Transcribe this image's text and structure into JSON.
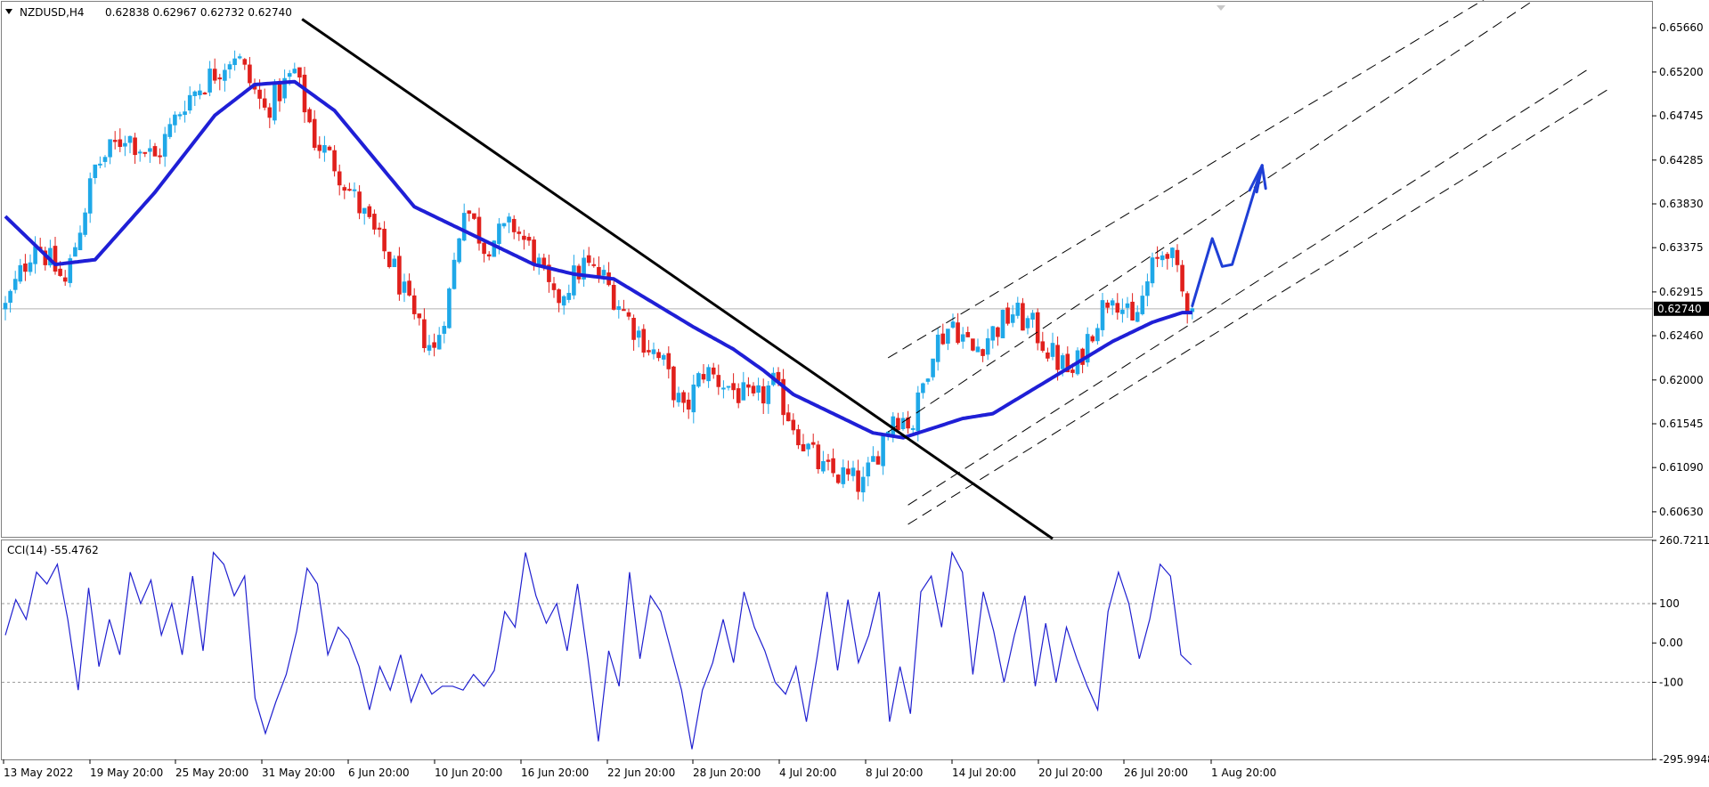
{
  "header": {
    "symbol": "NZDUSD,H4",
    "ohlc": "0.62838 0.62967 0.62732 0.62740",
    "cci_label": "CCI(14) -55.4762"
  },
  "colors": {
    "bull": "#1fa8e8",
    "bear": "#e0201c",
    "ma": "#1f1fd6",
    "cci": "#2020d0",
    "price_tag_bg": "#000000",
    "price_tag_text": "#ffffff"
  },
  "chart_data": [
    {
      "type": "candlestick",
      "symbol": "NZDUSD",
      "timeframe": "H4",
      "current_price": "0.62740",
      "y_ticks": [
        "0.65660",
        "0.65200",
        "0.64745",
        "0.64285",
        "0.63830",
        "0.63375",
        "0.62915",
        "0.62460",
        "0.62000",
        "0.61545",
        "0.61090",
        "0.60630"
      ],
      "ylim": [
        0.6037,
        0.6593
      ],
      "x_ticks": [
        "13 May 2022",
        "19 May 20:00",
        "25 May 20:00",
        "31 May 20:00",
        "6 Jun 20:00",
        "10 Jun 20:00",
        "16 Jun 20:00",
        "22 Jun 20:00",
        "28 Jun 20:00",
        "4 Jul 20:00",
        "8 Jul 20:00",
        "14 Jul 20:00",
        "20 Jul 20:00",
        "26 Jul 20:00",
        "1 Aug 20:00"
      ],
      "close_path": [
        [
          0,
          0.6275
        ],
        [
          6,
          0.6345
        ],
        [
          12,
          0.63
        ],
        [
          18,
          0.642
        ],
        [
          24,
          0.6455
        ],
        [
          30,
          0.643
        ],
        [
          36,
          0.649
        ],
        [
          42,
          0.652
        ],
        [
          46,
          0.654
        ],
        [
          52,
          0.648
        ],
        [
          58,
          0.652
        ],
        [
          62,
          0.645
        ],
        [
          66,
          0.6425
        ],
        [
          72,
          0.637
        ],
        [
          78,
          0.6315
        ],
        [
          82,
          0.626
        ],
        [
          86,
          0.623
        ],
        [
          89,
          0.629
        ],
        [
          92,
          0.6385
        ],
        [
          96,
          0.634
        ],
        [
          102,
          0.636
        ],
        [
          106,
          0.633
        ],
        [
          110,
          0.628
        ],
        [
          116,
          0.632
        ],
        [
          120,
          0.6305
        ],
        [
          126,
          0.6255
        ],
        [
          132,
          0.6215
        ],
        [
          136,
          0.6165
        ],
        [
          140,
          0.621
        ],
        [
          146,
          0.619
        ],
        [
          150,
          0.6175
        ],
        [
          154,
          0.6195
        ],
        [
          160,
          0.6135
        ],
        [
          164,
          0.6105
        ],
        [
          168,
          0.61
        ],
        [
          172,
          0.609
        ],
        [
          174,
          0.6115
        ],
        [
          178,
          0.6165
        ],
        [
          182,
          0.6155
        ],
        [
          186,
          0.6235
        ],
        [
          190,
          0.626
        ],
        [
          194,
          0.623
        ],
        [
          198,
          0.625
        ],
        [
          202,
          0.627
        ],
        [
          206,
          0.6255
        ],
        [
          210,
          0.6225
        ],
        [
          214,
          0.6205
        ],
        [
          218,
          0.6255
        ],
        [
          222,
          0.6295
        ],
        [
          226,
          0.6255
        ],
        [
          230,
          0.6315
        ],
        [
          233,
          0.634
        ],
        [
          236,
          0.629
        ],
        [
          238,
          0.6274
        ]
      ],
      "moving_average": [
        [
          0,
          0.637
        ],
        [
          10,
          0.632
        ],
        [
          18,
          0.6325
        ],
        [
          30,
          0.6395
        ],
        [
          42,
          0.6475
        ],
        [
          50,
          0.6507
        ],
        [
          58,
          0.651
        ],
        [
          66,
          0.648
        ],
        [
          74,
          0.643
        ],
        [
          82,
          0.638
        ],
        [
          90,
          0.636
        ],
        [
          98,
          0.634
        ],
        [
          106,
          0.632
        ],
        [
          114,
          0.631
        ],
        [
          122,
          0.6305
        ],
        [
          130,
          0.628
        ],
        [
          138,
          0.6255
        ],
        [
          146,
          0.6232
        ],
        [
          152,
          0.621
        ],
        [
          158,
          0.6185
        ],
        [
          166,
          0.6165
        ],
        [
          174,
          0.6145
        ],
        [
          180,
          0.614
        ],
        [
          186,
          0.615
        ],
        [
          192,
          0.616
        ],
        [
          198,
          0.6165
        ],
        [
          206,
          0.619
        ],
        [
          214,
          0.6215
        ],
        [
          222,
          0.624
        ],
        [
          230,
          0.626
        ],
        [
          236,
          0.627
        ],
        [
          238,
          0.627
        ]
      ],
      "trendline": [
        [
          59.5,
          0.6575
        ],
        [
          210,
          0.6035
        ]
      ],
      "channel_lines": [
        [
          [
            177,
            0.6223
          ],
          [
            298,
            0.66
          ]
        ],
        [
          [
            177,
            0.6146
          ],
          [
            308,
            0.66
          ]
        ],
        [
          [
            181,
            0.607
          ],
          [
            318,
            0.6525
          ]
        ],
        [
          [
            181,
            0.605
          ],
          [
            322,
            0.6504
          ]
        ]
      ],
      "projection_path": [
        [
          238,
          0.6277
        ],
        [
          242,
          0.6347
        ],
        [
          244,
          0.6318
        ],
        [
          246,
          0.632
        ],
        [
          252,
          0.6423
        ]
      ]
    },
    {
      "type": "line",
      "indicator": "CCI(14)",
      "current_value": "-55.4762",
      "y_ticks": [
        "260.7211",
        "100",
        "0.00",
        "-100",
        "-295.9948"
      ],
      "levels": [
        100,
        0,
        -100
      ],
      "ylim": [
        -295.9948,
        260.7211
      ],
      "values": [
        [
          0,
          20
        ],
        [
          2,
          110
        ],
        [
          4,
          60
        ],
        [
          6,
          180
        ],
        [
          8,
          150
        ],
        [
          10,
          200
        ],
        [
          12,
          60
        ],
        [
          14,
          -120
        ],
        [
          16,
          140
        ],
        [
          18,
          -60
        ],
        [
          20,
          60
        ],
        [
          22,
          -30
        ],
        [
          24,
          180
        ],
        [
          26,
          100
        ],
        [
          28,
          160
        ],
        [
          30,
          20
        ],
        [
          32,
          100
        ],
        [
          34,
          -30
        ],
        [
          36,
          170
        ],
        [
          38,
          -20
        ],
        [
          40,
          230
        ],
        [
          42,
          200
        ],
        [
          44,
          120
        ],
        [
          46,
          170
        ],
        [
          48,
          -140
        ],
        [
          50,
          -230
        ],
        [
          52,
          -150
        ],
        [
          54,
          -80
        ],
        [
          56,
          30
        ],
        [
          58,
          190
        ],
        [
          60,
          150
        ],
        [
          62,
          -30
        ],
        [
          64,
          40
        ],
        [
          66,
          10
        ],
        [
          68,
          -60
        ],
        [
          70,
          -170
        ],
        [
          72,
          -60
        ],
        [
          74,
          -120
        ],
        [
          76,
          -30
        ],
        [
          78,
          -150
        ],
        [
          80,
          -80
        ],
        [
          82,
          -130
        ],
        [
          84,
          -110
        ],
        [
          86,
          -110
        ],
        [
          88,
          -120
        ],
        [
          90,
          -80
        ],
        [
          92,
          -110
        ],
        [
          94,
          -70
        ],
        [
          96,
          80
        ],
        [
          98,
          40
        ],
        [
          100,
          230
        ],
        [
          102,
          120
        ],
        [
          104,
          50
        ],
        [
          106,
          100
        ],
        [
          108,
          -20
        ],
        [
          110,
          150
        ],
        [
          112,
          -40
        ],
        [
          114,
          -250
        ],
        [
          116,
          -20
        ],
        [
          118,
          -110
        ],
        [
          120,
          180
        ],
        [
          122,
          -40
        ],
        [
          124,
          120
        ],
        [
          126,
          80
        ],
        [
          128,
          -20
        ],
        [
          130,
          -120
        ],
        [
          132,
          -270
        ],
        [
          134,
          -120
        ],
        [
          136,
          -50
        ],
        [
          138,
          60
        ],
        [
          140,
          -50
        ],
        [
          142,
          130
        ],
        [
          144,
          40
        ],
        [
          146,
          -20
        ],
        [
          148,
          -100
        ],
        [
          150,
          -130
        ],
        [
          152,
          -60
        ],
        [
          154,
          -200
        ],
        [
          156,
          -40
        ],
        [
          158,
          130
        ],
        [
          160,
          -70
        ],
        [
          162,
          110
        ],
        [
          164,
          -50
        ],
        [
          166,
          20
        ],
        [
          168,
          130
        ],
        [
          170,
          -200
        ],
        [
          172,
          -60
        ],
        [
          174,
          -180
        ],
        [
          176,
          130
        ],
        [
          178,
          170
        ],
        [
          180,
          40
        ],
        [
          182,
          230
        ],
        [
          184,
          180
        ],
        [
          186,
          -80
        ],
        [
          188,
          130
        ],
        [
          190,
          30
        ],
        [
          192,
          -100
        ],
        [
          194,
          20
        ],
        [
          196,
          120
        ],
        [
          198,
          -110
        ],
        [
          200,
          50
        ],
        [
          202,
          -100
        ],
        [
          204,
          40
        ],
        [
          206,
          -40
        ],
        [
          208,
          -110
        ],
        [
          210,
          -170
        ],
        [
          212,
          80
        ],
        [
          214,
          180
        ],
        [
          216,
          100
        ],
        [
          218,
          -40
        ],
        [
          220,
          60
        ],
        [
          222,
          200
        ],
        [
          224,
          170
        ],
        [
          226,
          -30
        ],
        [
          228,
          -55.48
        ]
      ]
    }
  ]
}
